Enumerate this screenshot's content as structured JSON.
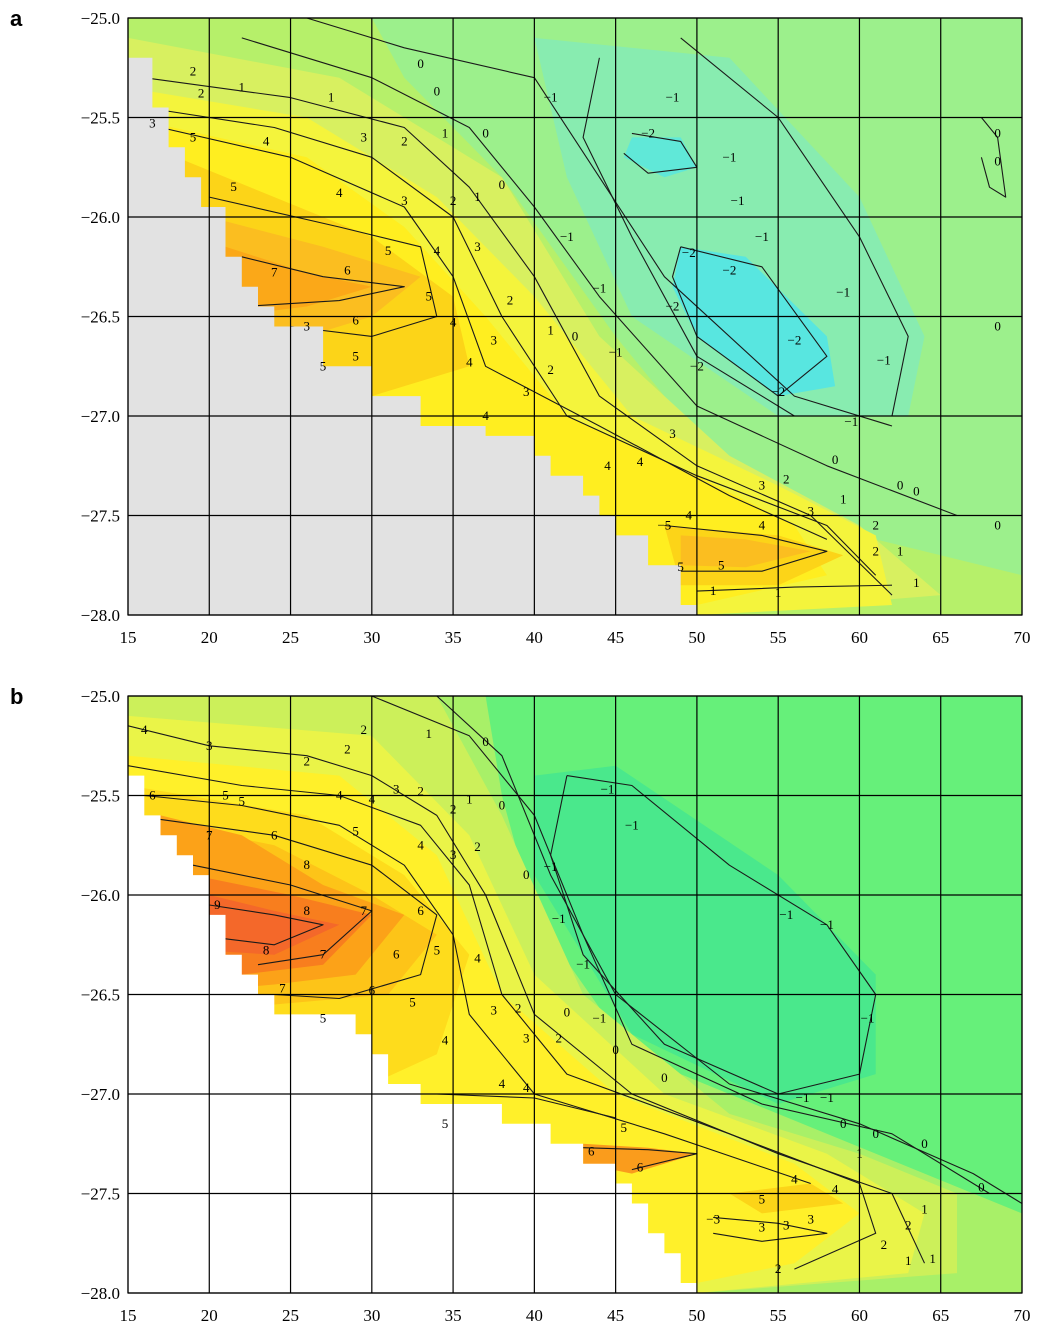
{
  "panels": [
    {
      "id": "a",
      "letter": "a",
      "land_color": "#e2e2e2",
      "x_ticks": [
        "15",
        "20",
        "25",
        "30",
        "35",
        "40",
        "45",
        "50",
        "55",
        "60",
        "65",
        "70"
      ],
      "y_ticks": [
        "−25.0",
        "−25.5",
        "−26.0",
        "−26.5",
        "−27.0",
        "−27.5",
        "−28.0"
      ],
      "contour_labels": [
        {
          "t": "2",
          "x": 19,
          "y": -25.27
        },
        {
          "t": "2",
          "x": 19.5,
          "y": -25.38
        },
        {
          "t": "1",
          "x": 22,
          "y": -25.35
        },
        {
          "t": "0",
          "x": 33,
          "y": -25.23
        },
        {
          "t": "0",
          "x": 34,
          "y": -25.37
        },
        {
          "t": "1",
          "x": 27.5,
          "y": -25.4
        },
        {
          "t": "−1",
          "x": 41,
          "y": -25.4
        },
        {
          "t": "−1",
          "x": 48.5,
          "y": -25.4
        },
        {
          "t": "3",
          "x": 16.5,
          "y": -25.53
        },
        {
          "t": "5",
          "x": 19,
          "y": -25.6
        },
        {
          "t": "4",
          "x": 23.5,
          "y": -25.62
        },
        {
          "t": "3",
          "x": 29.5,
          "y": -25.6
        },
        {
          "t": "2",
          "x": 32,
          "y": -25.62
        },
        {
          "t": "1",
          "x": 34.5,
          "y": -25.58
        },
        {
          "t": "0",
          "x": 37,
          "y": -25.58
        },
        {
          "t": "−2",
          "x": 47,
          "y": -25.58
        },
        {
          "t": "0",
          "x": 68.5,
          "y": -25.58
        },
        {
          "t": "0",
          "x": 68.5,
          "y": -25.72
        },
        {
          "t": "−1",
          "x": 52,
          "y": -25.7
        },
        {
          "t": "5",
          "x": 21.5,
          "y": -25.85
        },
        {
          "t": "4",
          "x": 28,
          "y": -25.88
        },
        {
          "t": "3",
          "x": 32,
          "y": -25.92
        },
        {
          "t": "2",
          "x": 35,
          "y": -25.92
        },
        {
          "t": "1",
          "x": 36.5,
          "y": -25.9
        },
        {
          "t": "0",
          "x": 38,
          "y": -25.84
        },
        {
          "t": "−1",
          "x": 52.5,
          "y": -25.92
        },
        {
          "t": "−1",
          "x": 42,
          "y": -26.1
        },
        {
          "t": "5",
          "x": 31,
          "y": -26.17
        },
        {
          "t": "4",
          "x": 34,
          "y": -26.17
        },
        {
          "t": "3",
          "x": 36.5,
          "y": -26.15
        },
        {
          "t": "−2",
          "x": 49.5,
          "y": -26.18
        },
        {
          "t": "−1",
          "x": 54,
          "y": -26.1
        },
        {
          "t": "7",
          "x": 24,
          "y": -26.28
        },
        {
          "t": "6",
          "x": 28.5,
          "y": -26.27
        },
        {
          "t": "5",
          "x": 33.5,
          "y": -26.4
        },
        {
          "t": "−2",
          "x": 52,
          "y": -26.27
        },
        {
          "t": "−1",
          "x": 44,
          "y": -26.36
        },
        {
          "t": "2",
          "x": 38.5,
          "y": -26.42
        },
        {
          "t": "−2",
          "x": 48.5,
          "y": -26.45
        },
        {
          "t": "−1",
          "x": 59,
          "y": -26.38
        },
        {
          "t": "6",
          "x": 29,
          "y": -26.52
        },
        {
          "t": "3",
          "x": 26,
          "y": -26.55
        },
        {
          "t": "4",
          "x": 35,
          "y": -26.53
        },
        {
          "t": "1",
          "x": 41,
          "y": -26.57
        },
        {
          "t": "0",
          "x": 42.5,
          "y": -26.6
        },
        {
          "t": "3",
          "x": 37.5,
          "y": -26.62
        },
        {
          "t": "−2",
          "x": 56,
          "y": -26.62
        },
        {
          "t": "0",
          "x": 68.5,
          "y": -26.55
        },
        {
          "t": "5",
          "x": 29,
          "y": -26.7
        },
        {
          "t": "5",
          "x": 27,
          "y": -26.75
        },
        {
          "t": "4",
          "x": 36,
          "y": -26.73
        },
        {
          "t": "2",
          "x": 41,
          "y": -26.77
        },
        {
          "t": "−1",
          "x": 45,
          "y": -26.68
        },
        {
          "t": "−2",
          "x": 50,
          "y": -26.75
        },
        {
          "t": "−1",
          "x": 61.5,
          "y": -26.72
        },
        {
          "t": "3",
          "x": 39.5,
          "y": -26.88
        },
        {
          "t": "−2",
          "x": 55,
          "y": -26.88
        },
        {
          "t": "4",
          "x": 37,
          "y": -27.0
        },
        {
          "t": "−1",
          "x": 59.5,
          "y": -27.03
        },
        {
          "t": "3",
          "x": 48.5,
          "y": -27.09
        },
        {
          "t": "0",
          "x": 58.5,
          "y": -27.22
        },
        {
          "t": "4",
          "x": 44.5,
          "y": -27.25
        },
        {
          "t": "4",
          "x": 46.5,
          "y": -27.23
        },
        {
          "t": "2",
          "x": 55.5,
          "y": -27.32
        },
        {
          "t": "0",
          "x": 62.5,
          "y": -27.35
        },
        {
          "t": "0",
          "x": 63.5,
          "y": -27.38
        },
        {
          "t": "3",
          "x": 54,
          "y": -27.35
        },
        {
          "t": "1",
          "x": 59,
          "y": -27.42
        },
        {
          "t": "4",
          "x": 49.5,
          "y": -27.5
        },
        {
          "t": "4",
          "x": 54,
          "y": -27.55
        },
        {
          "t": "3",
          "x": 57,
          "y": -27.48
        },
        {
          "t": "−5",
          "x": 48,
          "y": -27.55
        },
        {
          "t": "2",
          "x": 61,
          "y": -27.55
        },
        {
          "t": "0",
          "x": 68.5,
          "y": -27.55
        },
        {
          "t": "2",
          "x": 61,
          "y": -27.68
        },
        {
          "t": "1",
          "x": 62.5,
          "y": -27.68
        },
        {
          "t": "5",
          "x": 49,
          "y": -27.76
        },
        {
          "t": "5",
          "x": 51.5,
          "y": -27.75
        },
        {
          "t": "1",
          "x": 63.5,
          "y": -27.84
        },
        {
          "t": "1",
          "x": 51,
          "y": -27.88
        },
        {
          "t": "1",
          "x": 55,
          "y": -27.89
        }
      ]
    },
    {
      "id": "b",
      "letter": "b",
      "land_color": "#ffffff",
      "x_ticks": [
        "15",
        "20",
        "25",
        "30",
        "35",
        "40",
        "45",
        "50",
        "55",
        "60",
        "65",
        "70"
      ],
      "y_ticks": [
        "−25.0",
        "−25.5",
        "−26.0",
        "−26.5",
        "−27.0",
        "−27.5",
        "−28.0"
      ],
      "contour_labels": [
        {
          "t": "4",
          "x": 16,
          "y": -25.17
        },
        {
          "t": "3",
          "x": 20,
          "y": -25.25
        },
        {
          "t": "2",
          "x": 29.5,
          "y": -25.17
        },
        {
          "t": "2",
          "x": 28.5,
          "y": -25.27
        },
        {
          "t": "2",
          "x": 26,
          "y": -25.33
        },
        {
          "t": "1",
          "x": 33.5,
          "y": -25.19
        },
        {
          "t": "0",
          "x": 37,
          "y": -25.23
        },
        {
          "t": "6",
          "x": 16.5,
          "y": -25.5
        },
        {
          "t": "5",
          "x": 21,
          "y": -25.5
        },
        {
          "t": "5",
          "x": 22,
          "y": -25.53
        },
        {
          "t": "4",
          "x": 28,
          "y": -25.5
        },
        {
          "t": "4",
          "x": 30,
          "y": -25.52
        },
        {
          "t": "3",
          "x": 31.5,
          "y": -25.47
        },
        {
          "t": "2",
          "x": 33,
          "y": -25.48
        },
        {
          "t": "2",
          "x": 35,
          "y": -25.57
        },
        {
          "t": "1",
          "x": 36,
          "y": -25.52
        },
        {
          "t": "0",
          "x": 38,
          "y": -25.55
        },
        {
          "t": "−1",
          "x": 44.5,
          "y": -25.47
        },
        {
          "t": "−1",
          "x": 46,
          "y": -25.65
        },
        {
          "t": "7",
          "x": 20,
          "y": -25.7
        },
        {
          "t": "6",
          "x": 24,
          "y": -25.7
        },
        {
          "t": "5",
          "x": 29,
          "y": -25.68
        },
        {
          "t": "4",
          "x": 33,
          "y": -25.75
        },
        {
          "t": "3",
          "x": 35,
          "y": -25.8
        },
        {
          "t": "2",
          "x": 36.5,
          "y": -25.76
        },
        {
          "t": "8",
          "x": 26,
          "y": -25.85
        },
        {
          "t": "0",
          "x": 39.5,
          "y": -25.9
        },
        {
          "t": "−1",
          "x": 41,
          "y": -25.86
        },
        {
          "t": "9",
          "x": 20.5,
          "y": -26.05
        },
        {
          "t": "8",
          "x": 26,
          "y": -26.08
        },
        {
          "t": "7",
          "x": 29.5,
          "y": -26.08
        },
        {
          "t": "6",
          "x": 33,
          "y": -26.08
        },
        {
          "t": "−1",
          "x": 55.5,
          "y": -26.1
        },
        {
          "t": "−1",
          "x": 58,
          "y": -26.15
        },
        {
          "t": "−1",
          "x": 41.5,
          "y": -26.12
        },
        {
          "t": "5",
          "x": 34,
          "y": -26.28
        },
        {
          "t": "6",
          "x": 31.5,
          "y": -26.3
        },
        {
          "t": "8",
          "x": 23.5,
          "y": -26.28
        },
        {
          "t": "7",
          "x": 27,
          "y": -26.3
        },
        {
          "t": "4",
          "x": 36.5,
          "y": -26.32
        },
        {
          "t": "−1",
          "x": 43,
          "y": -26.35
        },
        {
          "t": "7",
          "x": 24.5,
          "y": -26.47
        },
        {
          "t": "6",
          "x": 30,
          "y": -26.48
        },
        {
          "t": "5",
          "x": 32.5,
          "y": -26.54
        },
        {
          "t": "3",
          "x": 37.5,
          "y": -26.58
        },
        {
          "t": "2",
          "x": 39,
          "y": -26.57
        },
        {
          "t": "0",
          "x": 42,
          "y": -26.59
        },
        {
          "t": "−1",
          "x": 44,
          "y": -26.62
        },
        {
          "t": "5",
          "x": 27,
          "y": -26.62
        },
        {
          "t": "4",
          "x": 34.5,
          "y": -26.73
        },
        {
          "t": "3",
          "x": 39.5,
          "y": -26.72
        },
        {
          "t": "2",
          "x": 41.5,
          "y": -26.72
        },
        {
          "t": "0",
          "x": 45,
          "y": -26.78
        },
        {
          "t": "−1",
          "x": 60.5,
          "y": -26.62
        },
        {
          "t": "4",
          "x": 38,
          "y": -26.95
        },
        {
          "t": "4",
          "x": 39.5,
          "y": -26.97
        },
        {
          "t": "0",
          "x": 48,
          "y": -26.92
        },
        {
          "t": "−1",
          "x": 56.5,
          "y": -27.02
        },
        {
          "t": "−1",
          "x": 58,
          "y": -27.02
        },
        {
          "t": "5",
          "x": 34.5,
          "y": -27.15
        },
        {
          "t": "5",
          "x": 45.5,
          "y": -27.17
        },
        {
          "t": "0",
          "x": 59,
          "y": -27.15
        },
        {
          "t": "0",
          "x": 61,
          "y": -27.2
        },
        {
          "t": "0",
          "x": 64,
          "y": -27.25
        },
        {
          "t": "6",
          "x": 43.5,
          "y": -27.29
        },
        {
          "t": "6",
          "x": 46.5,
          "y": -27.37
        },
        {
          "t": "1",
          "x": 60,
          "y": -27.3
        },
        {
          "t": "4",
          "x": 56,
          "y": -27.43
        },
        {
          "t": "4",
          "x": 58.5,
          "y": -27.48
        },
        {
          "t": "0",
          "x": 67.5,
          "y": -27.47
        },
        {
          "t": "5",
          "x": 54,
          "y": -27.53
        },
        {
          "t": "3",
          "x": 57,
          "y": -27.63
        },
        {
          "t": "3",
          "x": 55.5,
          "y": -27.66
        },
        {
          "t": "−3",
          "x": 51,
          "y": -27.63
        },
        {
          "t": "3",
          "x": 54,
          "y": -27.67
        },
        {
          "t": "2",
          "x": 63,
          "y": -27.66
        },
        {
          "t": "1",
          "x": 64,
          "y": -27.58
        },
        {
          "t": "2",
          "x": 61.5,
          "y": -27.76
        },
        {
          "t": "1",
          "x": 63,
          "y": -27.84
        },
        {
          "t": "1",
          "x": 64.5,
          "y": -27.83
        },
        {
          "t": "2",
          "x": 55,
          "y": -27.88
        }
      ]
    }
  ]
}
